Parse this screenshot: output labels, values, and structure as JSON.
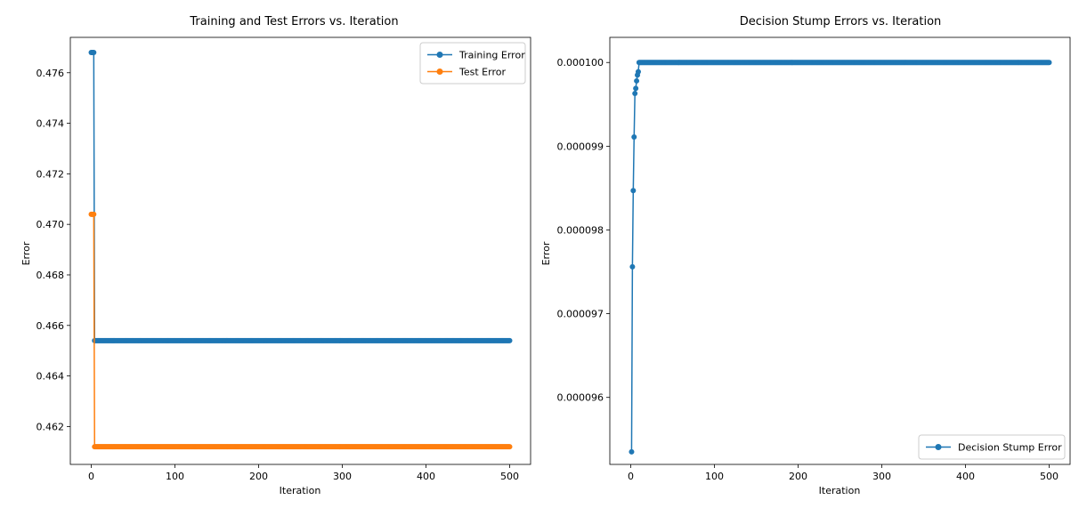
{
  "colors": {
    "blue": "#1f77b4",
    "orange": "#ff7f0e"
  },
  "chart_data": [
    {
      "type": "line",
      "title": "Training and Test Errors vs. Iteration",
      "xlabel": "Iteration",
      "ylabel": "Error",
      "xlim": [
        -25,
        525
      ],
      "ylim": [
        0.4605,
        0.4774
      ],
      "xticks": [
        0,
        100,
        200,
        300,
        400,
        500
      ],
      "yticks": [
        0.462,
        0.464,
        0.466,
        0.468,
        0.47,
        0.472,
        0.474,
        0.476
      ],
      "ytick_labels": [
        "0.462",
        "0.464",
        "0.466",
        "0.468",
        "0.470",
        "0.472",
        "0.474",
        "0.476"
      ],
      "legend_position": "top-right",
      "markers": "circle",
      "series": [
        {
          "name": "Training Error",
          "color": "#1f77b4",
          "segments": [
            {
              "x": [
                0,
                1,
                2,
                3
              ],
              "y": [
                0.4768,
                0.4768,
                0.4768,
                0.4768
              ]
            },
            {
              "x_from": 4,
              "x_to": 500,
              "y": 0.4654
            }
          ]
        },
        {
          "name": "Test Error",
          "color": "#ff7f0e",
          "segments": [
            {
              "x": [
                0,
                1,
                2,
                3
              ],
              "y": [
                0.4704,
                0.4704,
                0.4704,
                0.4704
              ]
            },
            {
              "x_from": 4,
              "x_to": 500,
              "y": 0.4612
            }
          ]
        }
      ]
    },
    {
      "type": "line",
      "title": "Decision Stump Errors vs. Iteration",
      "xlabel": "Iteration",
      "ylabel": "Error",
      "xlim": [
        -25,
        525
      ],
      "ylim": [
        9.52e-05,
        0.0001003
      ],
      "xticks": [
        0,
        100,
        200,
        300,
        400,
        500
      ],
      "yticks": [
        9.6e-05,
        9.7e-05,
        9.8e-05,
        9.9e-05,
        0.0001
      ],
      "ytick_labels": [
        "0.000096",
        "0.000097",
        "0.000098",
        "0.000099",
        "0.000100"
      ],
      "legend_position": "bottom-right",
      "markers": "circle",
      "series": [
        {
          "name": "Decision Stump Error",
          "color": "#1f77b4",
          "segments": [
            {
              "x": [
                1,
                2,
                3,
                4,
                5,
                6,
                7,
                8,
                9,
                10
              ],
              "y": [
                9.535e-05,
                9.756e-05,
                9.847e-05,
                9.911e-05,
                9.963e-05,
                9.969e-05,
                9.978e-05,
                9.985e-05,
                9.989e-05,
                0.0001
              ]
            },
            {
              "x_from": 11,
              "x_to": 500,
              "y": 0.0001
            }
          ]
        }
      ]
    }
  ]
}
